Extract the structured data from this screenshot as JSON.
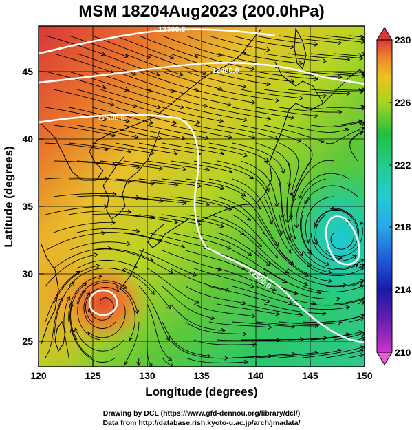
{
  "title": "MSM 18Z04Aug2023 (200.0hPa)",
  "x_axis": {
    "label": "Longitude (degrees)",
    "ticks": [
      "120",
      "125",
      "130",
      "135",
      "140",
      "145",
      "150"
    ]
  },
  "y_axis": {
    "label": "Latitude  (degrees)",
    "ticks": [
      "25",
      "30",
      "35",
      "40",
      "45"
    ]
  },
  "colorbar": {
    "ticks": [
      "230",
      "226",
      "222",
      "218",
      "214",
      "210"
    ],
    "range": [
      210,
      230
    ]
  },
  "contour_labels": [
    "12300.0",
    "12400.0",
    "12500.0",
    "12600.0"
  ],
  "credits": {
    "line1": "Drawing by DCL (https://www.gfd-dennou.org/library/dcl/)",
    "line2": "Data from http://database.rish.kyoto-u.ac.jp/arch/jmadata/"
  },
  "chart_data": {
    "type": "heatmap",
    "title": "MSM 18Z04Aug2023 (200.0hPa)",
    "xlabel": "Longitude (degrees)",
    "ylabel": "Latitude  (degrees)",
    "xlim": [
      120,
      150
    ],
    "ylim": [
      22.4,
      47.6
    ],
    "x_ticks": [
      120,
      125,
      130,
      135,
      140,
      145,
      150
    ],
    "y_ticks": [
      25,
      30,
      35,
      40,
      45
    ],
    "color_range": [
      210,
      230
    ],
    "color_ticks": [
      230,
      226,
      222,
      218,
      214,
      210
    ],
    "grid": true,
    "colormap_colors": [
      "#cc33cc",
      "#1a1aa8",
      "#1f77e0",
      "#22ccd0",
      "#22cc88",
      "#22c040",
      "#7fd21e",
      "#e8d81c",
      "#f0a028",
      "#e85030",
      "#d83838"
    ],
    "contours": [
      {
        "label": "12300.0"
      },
      {
        "label": "12400.0"
      },
      {
        "label": "12500.0"
      },
      {
        "label": "12600.0"
      }
    ],
    "features": [
      {
        "name": "warm anticyclone",
        "lon": 126.3,
        "lat": 27.6,
        "value": 228
      },
      {
        "name": "cold cyclone",
        "lon": 147.3,
        "lat": 32.0,
        "value": 219
      }
    ]
  }
}
